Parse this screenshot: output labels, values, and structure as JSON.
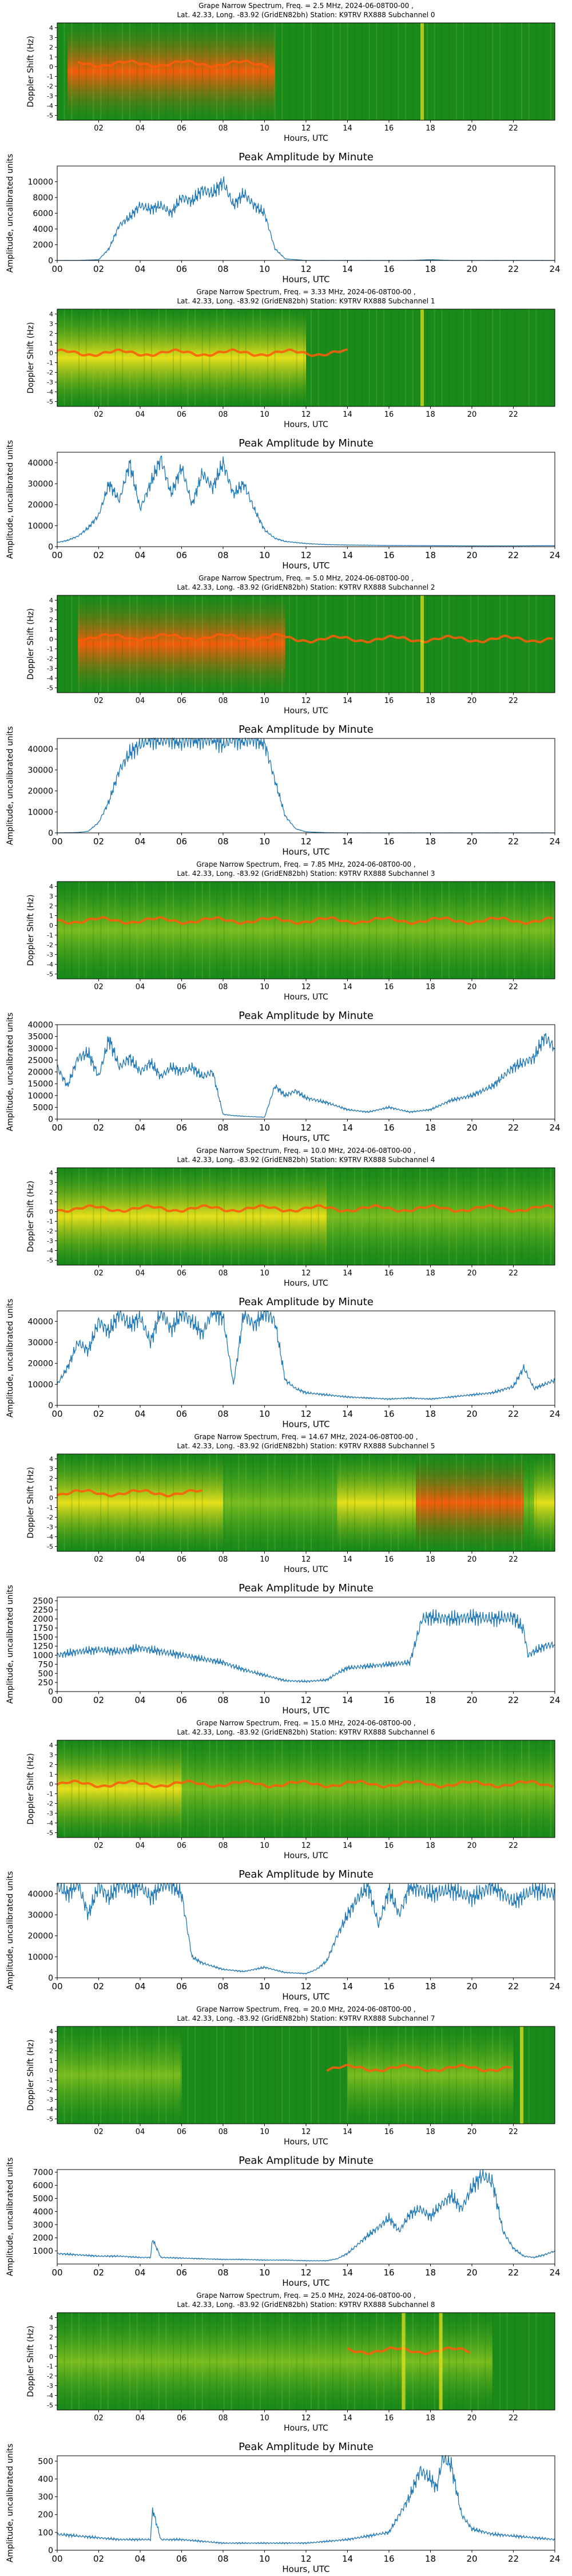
{
  "figure": {
    "title_prefix": "Grape Narrow Spectrum, Freq. = ",
    "title_mid": " MHz, ",
    "date": "2024-06-08T00-00 ,",
    "location_line": "Lat.  42.33, Long. -83.92 (GridEN82bh) Station: K9TRV RX888 Subchannel ",
    "spec_ylabel": "Doppler Shift (Hz)",
    "amp_title": "Peak Amplitude by Minute",
    "amp_ylabel": "Amplitude, uncalibrated units",
    "xlabel": "Hours, UTC"
  },
  "colors": {
    "line": "#1f77b4",
    "spec_bg": "#1a8a1a",
    "spec_mid": "#7fbf1f",
    "spec_hi": "#f2e41a",
    "spec_peak": "#ff5a0a"
  },
  "spec_x_ticks": [
    "02",
    "04",
    "06",
    "08",
    "10",
    "12",
    "14",
    "16",
    "18",
    "20",
    "22"
  ],
  "spec_y_ticks": [
    "4",
    "3",
    "2",
    "1",
    "0",
    "-1",
    "-2",
    "-3",
    "-4",
    "-5"
  ],
  "amp_x_ticks": [
    "00",
    "02",
    "04",
    "06",
    "08",
    "10",
    "12",
    "14",
    "16",
    "18",
    "20",
    "22",
    "24"
  ],
  "chart_data": [
    {
      "type": "line",
      "title": "Peak Amplitude by Minute",
      "frequency": "2.5",
      "subchannel": "0",
      "xlabel": "Hours, UTC",
      "ylabel": "Amplitude, uncalibrated units",
      "xlim": [
        0,
        24
      ],
      "ylim": [
        0,
        12000
      ],
      "yticks": [
        0,
        2000,
        4000,
        6000,
        8000,
        10000
      ],
      "x": [
        0,
        1,
        2,
        2.5,
        3,
        3.5,
        4,
        4.5,
        5,
        5.5,
        6,
        6.5,
        7,
        7.5,
        8,
        8.5,
        9,
        9.5,
        10,
        10.5,
        11,
        12,
        13,
        14,
        15,
        16,
        17,
        18,
        19,
        20,
        21,
        22,
        23,
        24
      ],
      "values": [
        0,
        0,
        100,
        1500,
        4500,
        5500,
        7000,
        6500,
        7000,
        6000,
        8000,
        7500,
        9000,
        8500,
        10000,
        7000,
        8500,
        7000,
        6000,
        1500,
        200,
        0,
        0,
        0,
        0,
        0,
        0,
        100,
        0,
        0,
        0,
        0,
        0,
        0
      ]
    },
    {
      "type": "line",
      "title": "Peak Amplitude by Minute",
      "frequency": "3.33",
      "subchannel": "1",
      "xlabel": "Hours, UTC",
      "ylabel": "Amplitude, uncalibrated units",
      "xlim": [
        0,
        24
      ],
      "ylim": [
        0,
        45000
      ],
      "yticks": [
        0,
        10000,
        20000,
        30000,
        40000
      ],
      "x": [
        0,
        0.5,
        1,
        1.5,
        2,
        2.5,
        3,
        3.5,
        4,
        4.5,
        5,
        5.5,
        6,
        6.5,
        7,
        7.5,
        8,
        8.5,
        9,
        9.5,
        10,
        10.5,
        11,
        12,
        13,
        14,
        16,
        18,
        20,
        22,
        24
      ],
      "values": [
        2000,
        3000,
        5000,
        9000,
        15000,
        30000,
        22000,
        40000,
        18000,
        30000,
        42000,
        25000,
        38000,
        20000,
        35000,
        28000,
        40000,
        25000,
        30000,
        18000,
        8000,
        4000,
        2500,
        1500,
        1000,
        800,
        600,
        500,
        400,
        400,
        500
      ]
    },
    {
      "type": "line",
      "title": "Peak Amplitude by Minute",
      "frequency": "5.0",
      "subchannel": "2",
      "xlabel": "Hours, UTC",
      "ylabel": "Amplitude, uncalibrated units",
      "xlim": [
        0,
        24
      ],
      "ylim": [
        0,
        45000
      ],
      "yticks": [
        0,
        10000,
        20000,
        30000,
        40000
      ],
      "x": [
        0,
        0.5,
        1,
        1.5,
        2,
        2.5,
        3,
        3.5,
        4,
        4.5,
        5,
        5.5,
        6,
        6.5,
        7,
        7.5,
        8,
        8.5,
        9,
        9.5,
        10,
        10.5,
        11,
        11.5,
        12,
        13,
        14,
        16,
        18,
        20,
        22,
        24
      ],
      "values": [
        0,
        100,
        200,
        800,
        5000,
        15000,
        30000,
        38000,
        42000,
        45000,
        44000,
        45000,
        43000,
        45000,
        44000,
        45000,
        42000,
        45000,
        44000,
        45000,
        43000,
        25000,
        8000,
        2000,
        500,
        100,
        0,
        0,
        0,
        0,
        0,
        0
      ]
    },
    {
      "type": "line",
      "title": "Peak Amplitude by Minute",
      "frequency": "7.85",
      "subchannel": "3",
      "xlabel": "Hours, UTC",
      "ylabel": "Amplitude, uncalibrated units",
      "xlim": [
        0,
        24
      ],
      "ylim": [
        0,
        40000
      ],
      "yticks": [
        0,
        5000,
        10000,
        15000,
        20000,
        25000,
        30000,
        35000,
        40000
      ],
      "x": [
        0,
        0.5,
        1,
        1.5,
        2,
        2.5,
        3,
        3.5,
        4,
        4.5,
        5,
        5.5,
        6,
        6.5,
        7,
        7.5,
        8,
        8.5,
        9,
        9.5,
        10,
        10.5,
        11,
        11.5,
        12,
        13,
        14,
        15,
        16,
        17,
        18,
        19,
        20,
        21,
        22,
        23,
        23.5,
        24
      ],
      "values": [
        22000,
        14000,
        26000,
        28000,
        18000,
        34000,
        22000,
        26000,
        20000,
        24000,
        18000,
        22000,
        20000,
        22000,
        18000,
        20000,
        2000,
        1500,
        1200,
        1000,
        800,
        14000,
        10000,
        12000,
        9000,
        7000,
        4000,
        3000,
        5000,
        3000,
        4000,
        8000,
        10000,
        14000,
        22000,
        26000,
        35000,
        30000
      ]
    },
    {
      "type": "line",
      "title": "Peak Amplitude by Minute",
      "frequency": "10.0",
      "subchannel": "4",
      "xlabel": "Hours, UTC",
      "ylabel": "Amplitude, uncalibrated units",
      "xlim": [
        0,
        24
      ],
      "ylim": [
        0,
        45000
      ],
      "yticks": [
        0,
        10000,
        20000,
        30000,
        40000
      ],
      "x": [
        0,
        0.5,
        1,
        1.5,
        2,
        2.5,
        3,
        3.5,
        4,
        4.5,
        5,
        5.5,
        6,
        6.5,
        7,
        7.5,
        8,
        8.5,
        9,
        9.5,
        10,
        10.5,
        11,
        11.5,
        12,
        13,
        14,
        15,
        16,
        17,
        18,
        19,
        20,
        21,
        22,
        22.5,
        23,
        24
      ],
      "values": [
        10000,
        18000,
        30000,
        26000,
        40000,
        35000,
        44000,
        38000,
        42000,
        30000,
        45000,
        36000,
        44000,
        40000,
        34000,
        45000,
        42000,
        10000,
        44000,
        38000,
        45000,
        40000,
        12000,
        8000,
        6000,
        5000,
        4000,
        3500,
        3000,
        3500,
        3000,
        4000,
        5000,
        6000,
        9000,
        18000,
        8000,
        12000
      ]
    },
    {
      "type": "line",
      "title": "Peak Amplitude by Minute",
      "frequency": "14.67",
      "subchannel": "5",
      "xlabel": "Hours, UTC",
      "ylabel": "Amplitude, uncalibrated units",
      "xlim": [
        0,
        24
      ],
      "ylim": [
        0,
        2600
      ],
      "yticks": [
        0,
        250,
        500,
        750,
        1000,
        1250,
        1500,
        1750,
        2000,
        2250,
        2500
      ],
      "x": [
        0,
        1,
        2,
        3,
        4,
        5,
        6,
        7,
        8,
        9,
        10,
        11,
        12,
        13,
        13.5,
        14,
        15,
        16,
        17,
        17.4,
        17.6,
        18,
        19,
        20,
        21,
        22,
        22.5,
        22.7,
        23,
        23.5,
        24
      ],
      "values": [
        1000,
        1100,
        1150,
        1100,
        1200,
        1100,
        1000,
        900,
        800,
        600,
        450,
        300,
        280,
        320,
        500,
        650,
        700,
        750,
        800,
        1600,
        2000,
        2050,
        2000,
        2050,
        2000,
        2050,
        1700,
        1000,
        1100,
        1250,
        1300
      ]
    },
    {
      "type": "line",
      "title": "Peak Amplitude by Minute",
      "frequency": "15.0",
      "subchannel": "6",
      "xlabel": "Hours, UTC",
      "ylabel": "Amplitude, uncalibrated units",
      "xlim": [
        0,
        24
      ],
      "ylim": [
        0,
        45000
      ],
      "yticks": [
        0,
        10000,
        20000,
        30000,
        40000
      ],
      "x": [
        0,
        0.5,
        1,
        1.5,
        2,
        2.5,
        3,
        3.5,
        4,
        4.5,
        5,
        5.5,
        6,
        6.5,
        7,
        8,
        9,
        10,
        11,
        12,
        12.5,
        13,
        13.5,
        14,
        14.5,
        15,
        15.5,
        16,
        16.5,
        17,
        18,
        19,
        20,
        21,
        22,
        23,
        24
      ],
      "values": [
        44000,
        40000,
        45000,
        30000,
        44000,
        38000,
        45000,
        42000,
        44000,
        38000,
        44000,
        45000,
        40000,
        10000,
        7000,
        4000,
        3000,
        5000,
        2500,
        2000,
        4000,
        8000,
        20000,
        30000,
        38000,
        44000,
        25000,
        42000,
        30000,
        44000,
        40000,
        42000,
        38000,
        44000,
        36000,
        42000,
        40000
      ]
    },
    {
      "type": "line",
      "title": "Peak Amplitude by Minute",
      "frequency": "20.0",
      "subchannel": "7",
      "xlabel": "Hours, UTC",
      "ylabel": "Amplitude, uncalibrated units",
      "xlim": [
        0,
        24
      ],
      "ylim": [
        0,
        7200
      ],
      "yticks": [
        1000,
        2000,
        3000,
        4000,
        5000,
        6000,
        7000
      ],
      "x": [
        0,
        1,
        2,
        3,
        4,
        4.5,
        4.6,
        5,
        6,
        7,
        8,
        9,
        10,
        11,
        12,
        13,
        13.5,
        14,
        14.5,
        15,
        15.5,
        16,
        16.5,
        17,
        17.5,
        18,
        18.5,
        19,
        19.5,
        20,
        20.5,
        21,
        21.5,
        22,
        22.5,
        23,
        23.5,
        24
      ],
      "values": [
        800,
        700,
        600,
        600,
        500,
        500,
        1900,
        500,
        450,
        400,
        350,
        350,
        300,
        300,
        250,
        250,
        400,
        800,
        1500,
        2200,
        2800,
        3500,
        2500,
        3800,
        4200,
        3600,
        4500,
        5200,
        4200,
        5800,
        6800,
        6200,
        2500,
        1200,
        600,
        500,
        700,
        1000
      ]
    },
    {
      "type": "line",
      "title": "Peak Amplitude by Minute",
      "frequency": "25.0",
      "subchannel": "8",
      "xlabel": "Hours, UTC",
      "ylabel": "Amplitude, uncalibrated units",
      "xlim": [
        0,
        24
      ],
      "ylim": [
        0,
        530
      ],
      "yticks": [
        0,
        100,
        200,
        300,
        400,
        500
      ],
      "x": [
        0,
        1,
        2,
        3,
        4,
        4.5,
        4.6,
        5,
        6,
        7,
        8,
        9,
        10,
        11,
        12,
        13,
        14,
        15,
        16,
        16.5,
        17,
        17.5,
        18,
        18.3,
        18.6,
        19,
        19.5,
        20,
        21,
        22,
        23,
        24
      ],
      "values": [
        90,
        80,
        70,
        60,
        60,
        60,
        230,
        60,
        60,
        50,
        40,
        40,
        40,
        40,
        40,
        50,
        60,
        80,
        100,
        200,
        300,
        450,
        400,
        350,
        520,
        480,
        200,
        120,
        90,
        80,
        70,
        60
      ]
    }
  ],
  "spectrograms": [
    {
      "frequency": "2.5",
      "subchannel": "0",
      "bands": [
        {
          "from": 0.5,
          "to": 10.5,
          "level": "peak"
        }
      ],
      "ridge": [
        {
          "from": 1,
          "to": 10.2,
          "offset": 0.3
        }
      ],
      "stripes": [
        17.6
      ]
    },
    {
      "frequency": "3.33",
      "subchannel": "1",
      "bands": [
        {
          "from": 0,
          "to": 12,
          "level": "hi"
        }
      ],
      "ridge": [
        {
          "from": 0,
          "to": 14,
          "offset": 0
        }
      ],
      "stripes": [
        17.6
      ]
    },
    {
      "frequency": "5.0",
      "subchannel": "2",
      "bands": [
        {
          "from": 1,
          "to": 11,
          "level": "peak"
        }
      ],
      "ridge": [
        {
          "from": 1,
          "to": 11,
          "offset": 0.2
        },
        {
          "from": 11,
          "to": 24,
          "offset": 0
        }
      ],
      "stripes": [
        17.6
      ]
    },
    {
      "frequency": "7.85",
      "subchannel": "3",
      "bands": [
        {
          "from": 0,
          "to": 24,
          "level": "mid"
        }
      ],
      "ridge": [
        {
          "from": 0,
          "to": 24,
          "offset": 0.5
        }
      ],
      "stripes": []
    },
    {
      "frequency": "10.0",
      "subchannel": "4",
      "bands": [
        {
          "from": 0,
          "to": 13,
          "level": "hi"
        },
        {
          "from": 13,
          "to": 24,
          "level": "mid"
        }
      ],
      "ridge": [
        {
          "from": 0,
          "to": 24,
          "offset": 0.3
        }
      ],
      "stripes": []
    },
    {
      "frequency": "14.67",
      "subchannel": "5",
      "bands": [
        {
          "from": 0,
          "to": 8,
          "level": "hi"
        },
        {
          "from": 8,
          "to": 13.5,
          "level": "mid"
        },
        {
          "from": 13.5,
          "to": 17.3,
          "level": "hi"
        },
        {
          "from": 17.3,
          "to": 22.5,
          "level": "peak"
        },
        {
          "from": 22.5,
          "to": 23,
          "level": "mid"
        },
        {
          "from": 23,
          "to": 24,
          "level": "hi"
        }
      ],
      "ridge": [
        {
          "from": 0,
          "to": 7,
          "offset": 0.5
        }
      ],
      "stripes": []
    },
    {
      "frequency": "15.0",
      "subchannel": "6",
      "bands": [
        {
          "from": 0,
          "to": 6,
          "level": "hi"
        },
        {
          "from": 6,
          "to": 24,
          "level": "mid"
        }
      ],
      "ridge": [
        {
          "from": 0,
          "to": 24,
          "offset": 0
        }
      ],
      "stripes": []
    },
    {
      "frequency": "20.0",
      "subchannel": "7",
      "bands": [
        {
          "from": 0,
          "to": 6,
          "level": "mid"
        },
        {
          "from": 14,
          "to": 22,
          "level": "mid"
        }
      ],
      "ridge": [
        {
          "from": 13,
          "to": 22,
          "offset": 0.2
        }
      ],
      "stripes": [
        22.4
      ]
    },
    {
      "frequency": "25.0",
      "subchannel": "8",
      "bands": [
        {
          "from": 0,
          "to": 14,
          "level": "mid"
        },
        {
          "from": 14,
          "to": 21,
          "level": "mid"
        }
      ],
      "ridge": [
        {
          "from": 14,
          "to": 20,
          "offset": 0.6
        }
      ],
      "stripes": [
        16.7,
        18.5
      ]
    }
  ]
}
